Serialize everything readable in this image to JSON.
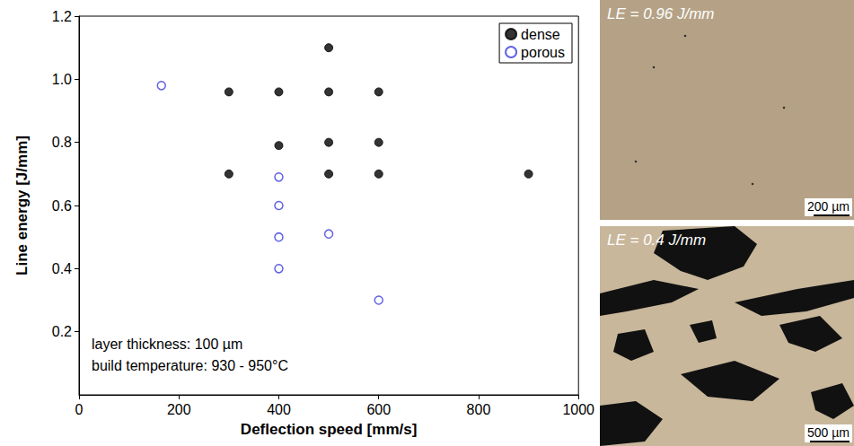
{
  "chart_data": {
    "type": "scatter",
    "xlabel": "Deflection speed [mm/s]",
    "ylabel": "Line energy [J/mm]",
    "xlim": [
      0,
      1000
    ],
    "xticks": [
      0,
      200,
      400,
      600,
      800,
      1000
    ],
    "ylim": [
      0,
      1.2
    ],
    "yticks": [
      0.2,
      0.4,
      0.6,
      0.8,
      {
        "value": 1,
        "label": "1.0"
      },
      1.2
    ],
    "grid": false,
    "legend": "upper right",
    "annotations": [
      "layer thickness: 100 µm",
      "build temperature: 930 - 950°C"
    ],
    "series": [
      {
        "name": "dense",
        "color": "#000000",
        "marker": "filled circle",
        "x": [
          300,
          400,
          500,
          600,
          500,
          400,
          500,
          600,
          300,
          500,
          600,
          900
        ],
        "values": [
          0.96,
          0.96,
          0.96,
          0.96,
          1.1,
          0.79,
          0.8,
          0.8,
          0.7,
          0.7,
          0.7,
          0.7
        ]
      },
      {
        "name": "porous",
        "color": "#3a3ae0",
        "marker": "open circle",
        "x": [
          165,
          400,
          400,
          400,
          400,
          500,
          600
        ],
        "values": [
          0.98,
          0.69,
          0.6,
          0.5,
          0.4,
          0.51,
          0.3
        ]
      }
    ]
  },
  "panels": [
    {
      "label": "LE = 0.96 J/mm",
      "scale_bar": "200 µm"
    },
    {
      "label": "LE = 0.4 J/mm",
      "scale_bar": "500 µm"
    }
  ]
}
